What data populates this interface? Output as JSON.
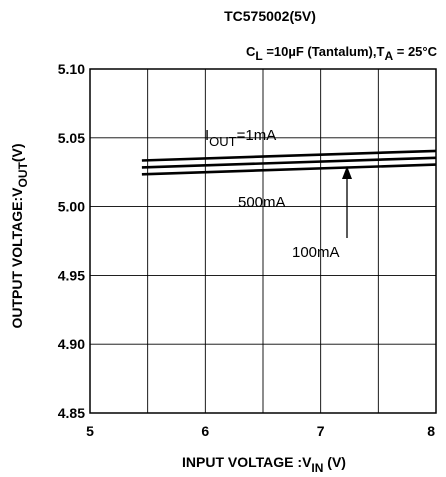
{
  "chart_data": {
    "type": "line",
    "title": "TC575002(5V)",
    "conditions": {
      "cl_sym": "C",
      "cl_sub": "L",
      "cl_rest": " =10µF (Tantalum),T",
      "ta_sub": "A",
      "ta_rest": " = 25°C"
    },
    "ylabel": {
      "main": "OUTPUT VOLTAGE:V",
      "sub": "OUT",
      "end": "(V)"
    },
    "xlabel": {
      "main": "INPUT VOLTAGE :V",
      "sub": "IN",
      "end": " (V)"
    },
    "xlim": [
      5,
      8
    ],
    "ylim": [
      4.85,
      5.1
    ],
    "x_ticks": [
      5,
      6,
      7,
      8
    ],
    "x_tick_labels": [
      "5",
      "6",
      "7",
      "8"
    ],
    "y_ticks": [
      4.85,
      4.9,
      4.95,
      5.0,
      5.05,
      5.1
    ],
    "y_tick_labels": [
      "4.85",
      "4.90",
      "4.95",
      "5.00",
      "5.05",
      "5.10"
    ],
    "x_grid": [
      5.5,
      6,
      6.5,
      7,
      7.5,
      8
    ],
    "grid": true,
    "series": [
      {
        "name": "1mA",
        "x": [
          5.45,
          8.0
        ],
        "y": [
          5.0335,
          5.0405
        ]
      },
      {
        "name": "500mA",
        "x": [
          5.45,
          8.0
        ],
        "y": [
          5.0285,
          5.0355
        ]
      },
      {
        "name": "100mA",
        "x": [
          5.45,
          8.0
        ],
        "y": [
          5.0235,
          5.0305
        ]
      }
    ],
    "annotations": {
      "iout_main": "I",
      "iout_sub": "OUT",
      "iout_rest": "=1mA",
      "label_500": "500mA",
      "label_100": "100mA"
    },
    "colors": {
      "line": "#000000",
      "grid": "#000000",
      "background": "#ffffff"
    }
  }
}
